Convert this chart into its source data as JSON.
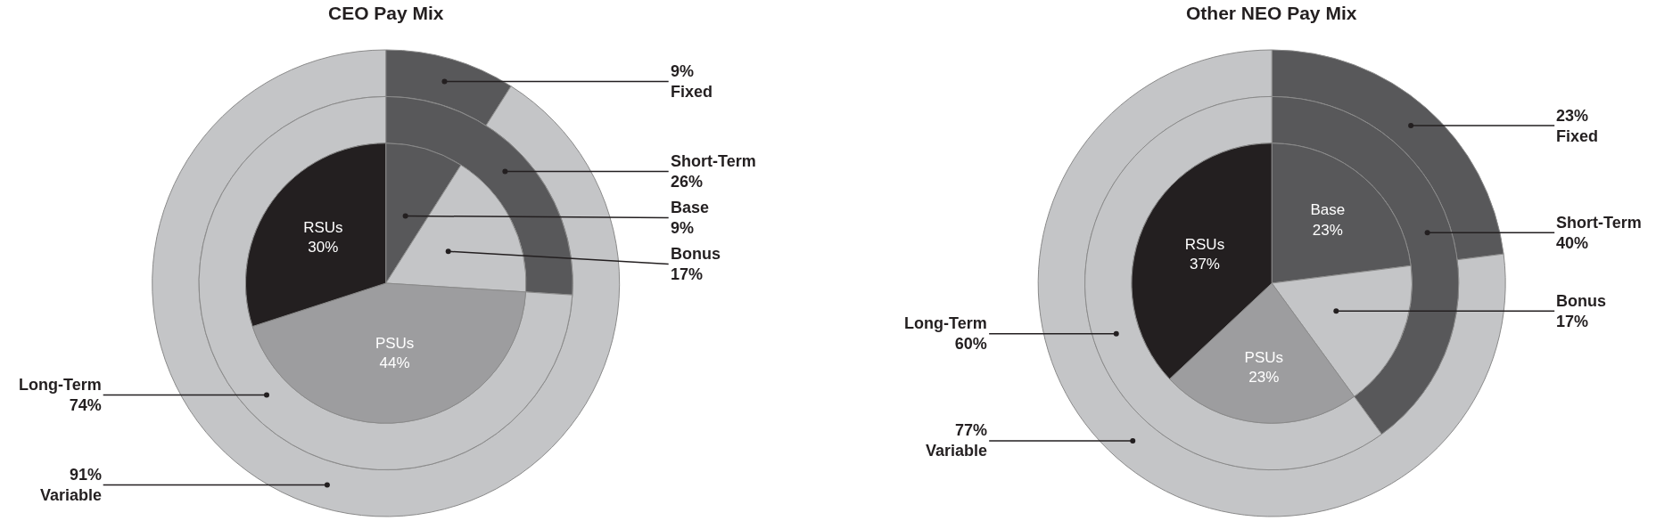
{
  "chart_data": [
    {
      "type": "donut",
      "title": "CEO Pay Mix",
      "categories": [
        "Fixed",
        "Variable"
      ],
      "values": [
        9,
        91
      ],
      "value_labels": [
        "9%",
        "91%"
      ],
      "colors": [
        "#58585a",
        "#c4c5c7"
      ]
    },
    {
      "type": "donut",
      "categories": [
        "Short-Term",
        "Long-Term"
      ],
      "values": [
        26,
        74
      ],
      "value_labels": [
        "26%",
        "74%"
      ],
      "colors": [
        "#58585a",
        "#c4c5c7"
      ]
    },
    {
      "type": "pie",
      "categories": [
        "Base",
        "Bonus",
        "PSUs",
        "RSUs"
      ],
      "values": [
        9,
        17,
        44,
        30
      ],
      "value_labels": [
        "9%",
        "17%",
        "44%",
        "30%"
      ],
      "colors": [
        "#58585a",
        "#c4c5c7",
        "#9d9d9f",
        "#231f20"
      ]
    },
    {
      "type": "donut",
      "title": "Other NEO Pay Mix",
      "categories": [
        "Fixed",
        "Variable"
      ],
      "values": [
        23,
        77
      ],
      "value_labels": [
        "23%",
        "77%"
      ],
      "colors": [
        "#58585a",
        "#c4c5c7"
      ]
    },
    {
      "type": "donut",
      "categories": [
        "Short-Term",
        "Long-Term"
      ],
      "values": [
        40,
        60
      ],
      "value_labels": [
        "40%",
        "60%"
      ],
      "colors": [
        "#58585a",
        "#c4c5c7"
      ]
    },
    {
      "type": "pie",
      "categories": [
        "Base",
        "Bonus",
        "PSUs",
        "RSUs"
      ],
      "values": [
        23,
        17,
        23,
        37
      ],
      "value_labels": [
        "23%",
        "17%",
        "23%",
        "37%"
      ],
      "colors": [
        "#58585a",
        "#c4c5c7",
        "#9d9d9f",
        "#231f20"
      ]
    }
  ]
}
